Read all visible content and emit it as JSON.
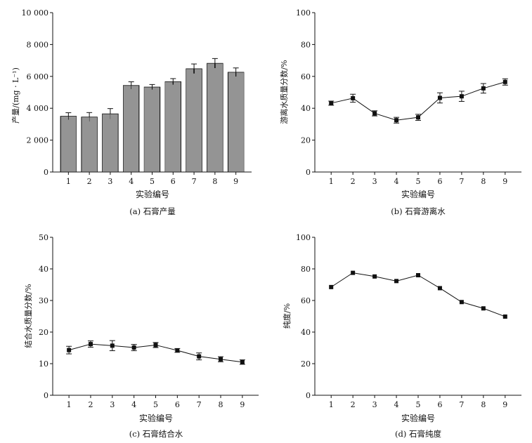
{
  "chart_data": [
    {
      "id": "a",
      "type": "bar",
      "caption": "(a) 石膏产量",
      "xlabel": "实验编号",
      "ylabel": "产量/(mg · L⁻¹)",
      "categories": [
        "1",
        "2",
        "3",
        "4",
        "5",
        "6",
        "7",
        "8",
        "9"
      ],
      "values": [
        3500,
        3450,
        3650,
        5430,
        5330,
        5670,
        6480,
        6820,
        6260
      ],
      "errors": [
        220,
        280,
        330,
        230,
        160,
        190,
        300,
        300,
        270
      ],
      "ylim": [
        0,
        10000
      ],
      "yticks": [
        0,
        2000,
        4000,
        6000,
        8000,
        10000
      ],
      "ytick_labels": [
        "0",
        "2 000",
        "4 000",
        "6 000",
        "8 000",
        "10 000"
      ]
    },
    {
      "id": "b",
      "type": "line",
      "caption": "(b) 石膏游离水",
      "xlabel": "实验编号",
      "ylabel": "游离水质量分数/%",
      "x": [
        "1",
        "2",
        "3",
        "4",
        "5",
        "6",
        "7",
        "8",
        "9"
      ],
      "values": [
        43.2,
        46.3,
        36.8,
        32.5,
        34.3,
        46.5,
        47.5,
        52.5,
        56.5
      ],
      "errors": [
        1.3,
        2.5,
        1.6,
        1.8,
        1.9,
        3.2,
        3.2,
        3.0,
        2.0
      ],
      "ylim": [
        0,
        100
      ],
      "yticks": [
        0,
        20,
        40,
        60,
        80,
        100
      ],
      "ytick_labels": [
        "0",
        "20",
        "40",
        "60",
        "80",
        "100"
      ]
    },
    {
      "id": "c",
      "type": "line",
      "caption": "(c) 石膏结合水",
      "xlabel": "实验编号",
      "ylabel": "结合水质量分数/%",
      "x": [
        "1",
        "2",
        "3",
        "4",
        "5",
        "6",
        "7",
        "8",
        "9"
      ],
      "values": [
        14.3,
        16.2,
        15.7,
        15.1,
        15.9,
        14.2,
        12.3,
        11.4,
        10.5
      ],
      "errors": [
        1.2,
        1.0,
        1.6,
        1.0,
        0.8,
        0.6,
        1.1,
        0.8,
        0.7
      ],
      "ylim": [
        0,
        50
      ],
      "yticks": [
        0,
        10,
        20,
        30,
        40,
        50
      ],
      "ytick_labels": [
        "0",
        "10",
        "20",
        "30",
        "40",
        "50"
      ]
    },
    {
      "id": "d",
      "type": "line",
      "caption": "(d) 石膏纯度",
      "xlabel": "实验编号",
      "ylabel": "纯度/%",
      "x": [
        "1",
        "2",
        "3",
        "4",
        "5",
        "6",
        "7",
        "8",
        "9"
      ],
      "values": [
        68.5,
        77.5,
        75.2,
        72.3,
        76.0,
        67.8,
        59.0,
        55.0,
        49.8
      ],
      "errors": [],
      "ylim": [
        0,
        100
      ],
      "yticks": [
        0,
        20,
        40,
        60,
        80,
        100
      ],
      "ytick_labels": [
        "0",
        "20",
        "40",
        "60",
        "80",
        "100"
      ]
    }
  ]
}
